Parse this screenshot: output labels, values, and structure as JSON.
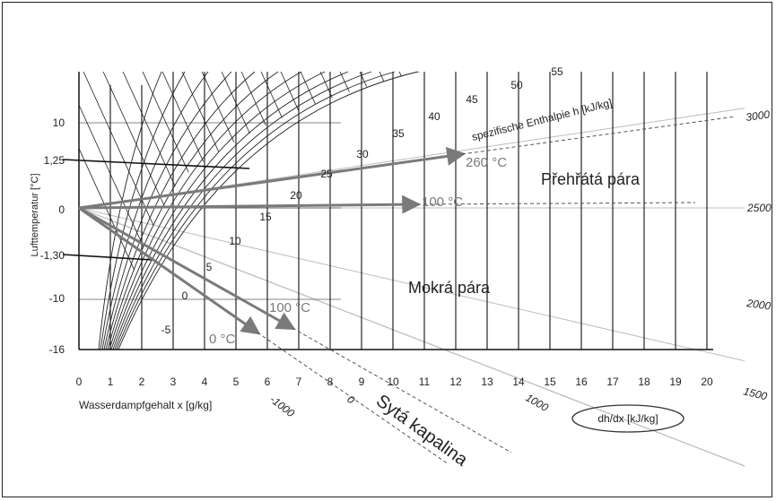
{
  "y_axis": {
    "label": "Lufttemperatur [°C]",
    "ticks": [
      {
        "label": "10",
        "value": 10
      },
      {
        "label": "1,25",
        "value": 1.25
      },
      {
        "label": "0",
        "value": 0
      },
      {
        "label": "-1,30",
        "value": -1.3
      },
      {
        "label": "-10",
        "value": -10
      },
      {
        "label": "-16",
        "value": -16
      }
    ]
  },
  "x_axis": {
    "label": "Wasserdampfgehalt x [g/kg]",
    "ticks": [
      "0",
      "1",
      "2",
      "3",
      "4",
      "5",
      "6",
      "7",
      "8",
      "9",
      "10",
      "11",
      "12",
      "13",
      "14",
      "15",
      "16",
      "17",
      "18",
      "19",
      "20"
    ]
  },
  "enthalpy": {
    "label": "spezifische Enthalpie h [kJ/kg]",
    "values": [
      "-5",
      "0",
      "5",
      "10",
      "15",
      "20",
      "25",
      "30",
      "35",
      "40",
      "45",
      "50",
      "55"
    ]
  },
  "edge_scale": {
    "label": "dh/dx [kJ/kg]",
    "right_values": [
      "3000",
      "2500",
      "2000",
      "1500"
    ],
    "bottom_values": [
      "1000",
      "0",
      "-1000"
    ]
  },
  "regions": {
    "superheated": "Přehřátá pára",
    "wet": "Mokrá pára",
    "liquid": "Sytá kapalina"
  },
  "arrows": [
    {
      "label": "260 °C"
    },
    {
      "label": "100 °C"
    },
    {
      "label": "100 °C"
    },
    {
      "label": "0 °C"
    }
  ],
  "colors": {
    "arrow": "#7a7a7a",
    "grid": "#111111",
    "fan": "#b8b8b8"
  }
}
